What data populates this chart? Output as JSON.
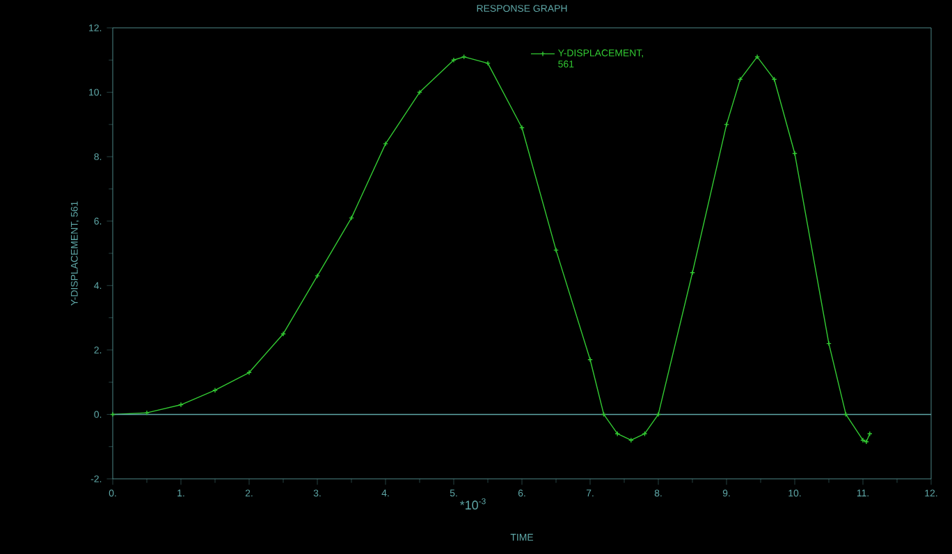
{
  "chart_data": {
    "type": "line",
    "title": "RESPONSE GRAPH",
    "xlabel": "TIME",
    "ylabel": "Y-DISPLACEMENT, 561",
    "annotations": [
      "*10$^{-3}$"
    ],
    "x": [
      0,
      0.5,
      1,
      1.5,
      2,
      2.5,
      3,
      3.5,
      4,
      4.5,
      5,
      5.15,
      5.5,
      6,
      6.5,
      7,
      7.2,
      7.4,
      7.6,
      7.8,
      8,
      8.5,
      9,
      9.2,
      9.45,
      9.7,
      10,
      10.5,
      10.75,
      11,
      11.05,
      11.1
    ],
    "series": [
      {
        "name": "Y-DISPLACEMENT, 561",
        "color": "#33cc33",
        "values": [
          0,
          0.05,
          0.3,
          0.75,
          1.3,
          2.5,
          4.3,
          6.1,
          8.4,
          10.0,
          11.0,
          11.1,
          10.9,
          8.9,
          5.1,
          1.7,
          0.0,
          -0.6,
          -0.8,
          -0.6,
          0.0,
          4.4,
          9.0,
          10.4,
          11.1,
          10.4,
          8.1,
          2.2,
          0.0,
          -0.8,
          -0.85,
          -0.6
        ]
      }
    ],
    "xlim": [
      0,
      12
    ],
    "ylim": [
      -2,
      12
    ],
    "xticks": [
      {
        "value": 0,
        "label": "0."
      },
      {
        "value": 1,
        "label": "1."
      },
      {
        "value": 2,
        "label": "2."
      },
      {
        "value": 3,
        "label": "3."
      },
      {
        "value": 4,
        "label": "4."
      },
      {
        "value": 5,
        "label": "5."
      },
      {
        "value": 6,
        "label": "6."
      },
      {
        "value": 7,
        "label": "7."
      },
      {
        "value": 8,
        "label": "8."
      },
      {
        "value": 9,
        "label": "9."
      },
      {
        "value": 10,
        "label": "10."
      },
      {
        "value": 11,
        "label": "11."
      },
      {
        "value": 12,
        "label": "12."
      }
    ],
    "yticks": [
      {
        "value": -2,
        "label": "-2."
      },
      {
        "value": 0,
        "label": "0."
      },
      {
        "value": 2,
        "label": "2."
      },
      {
        "value": 4,
        "label": "4."
      },
      {
        "value": 6,
        "label": "6."
      },
      {
        "value": 8,
        "label": "8."
      },
      {
        "value": 10,
        "label": "10."
      },
      {
        "value": 12,
        "label": "12."
      }
    ],
    "ref_lines": [
      {
        "axis": "y",
        "value": 0,
        "color": "#5fa8a8"
      }
    ],
    "legend": "top",
    "marker": "cross",
    "line_style": "solid",
    "grid": false
  }
}
